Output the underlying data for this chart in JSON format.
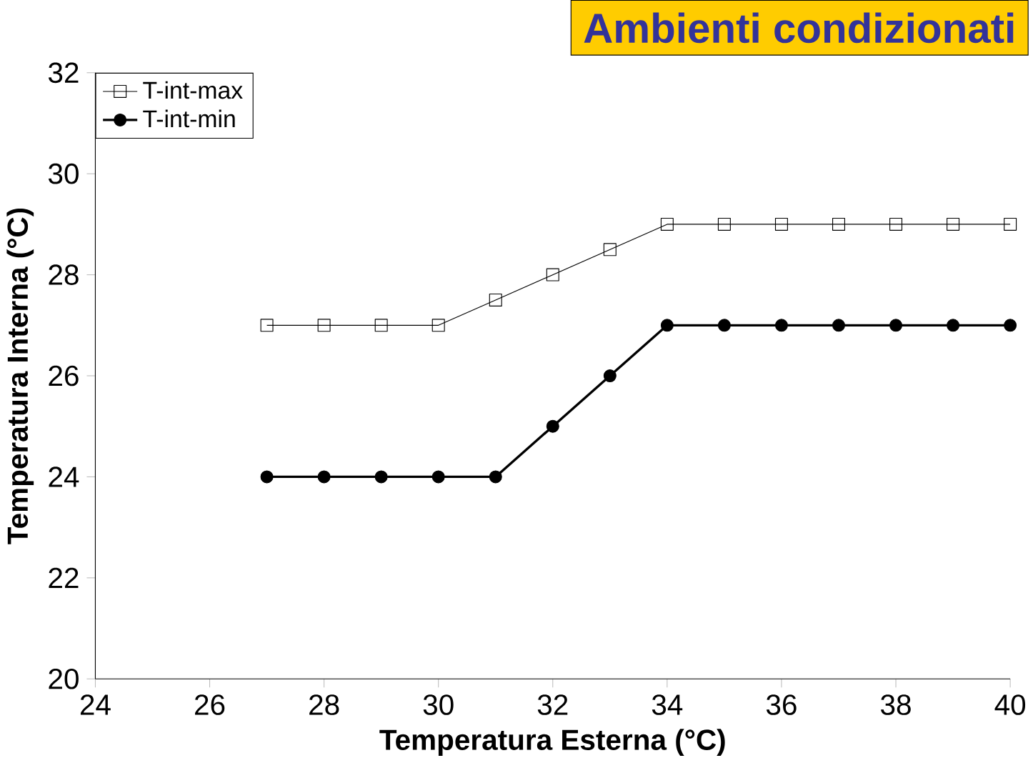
{
  "chart_data": {
    "type": "line",
    "title": "Ambienti condizionati",
    "xlabel": "Temperatura Esterna (°C)",
    "ylabel": "Temperatura Interna (°C)",
    "x": [
      27,
      28,
      29,
      30,
      31,
      32,
      33,
      34,
      35,
      36,
      37,
      38,
      39,
      40
    ],
    "series": [
      {
        "name": "T-int-max",
        "color": "#000000",
        "marker": "square",
        "values": [
          27,
          27,
          27,
          27,
          27.5,
          28,
          28.5,
          29,
          29,
          29,
          29,
          29,
          29,
          29
        ]
      },
      {
        "name": "T-int-min",
        "color": "#000000",
        "marker": "circle",
        "values": [
          24,
          24,
          24,
          24,
          24,
          25,
          26,
          27,
          27,
          27,
          27,
          27,
          27,
          27
        ]
      }
    ],
    "xlim": [
      24,
      40
    ],
    "ylim": [
      20,
      32
    ],
    "xticks": [
      24,
      26,
      28,
      30,
      32,
      34,
      36,
      38,
      40
    ],
    "yticks": [
      20,
      22,
      24,
      26,
      28,
      30,
      32
    ],
    "legend": "top left",
    "grid": false,
    "line_style": "solid"
  }
}
